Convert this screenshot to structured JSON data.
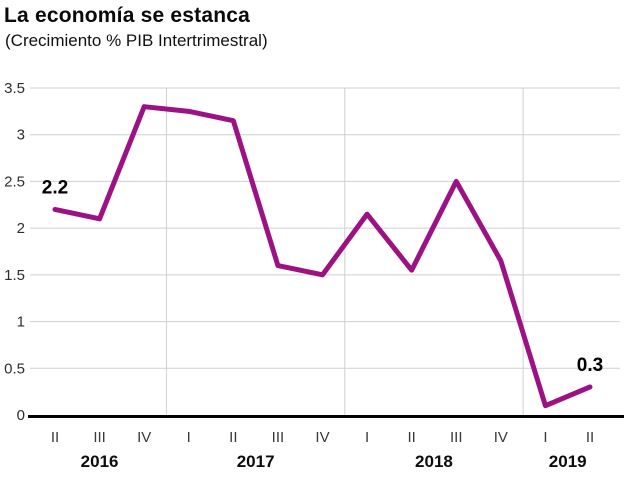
{
  "title": "La economía se estanca",
  "subtitle": "(Crecimiento % PIB Intertrimestral)",
  "chart_data": {
    "type": "line",
    "x": [
      "II",
      "III",
      "IV",
      "I",
      "II",
      "III",
      "IV",
      "I",
      "II",
      "III",
      "IV",
      "I",
      "II"
    ],
    "year_groups": [
      {
        "label": "2016",
        "quarters": 3
      },
      {
        "label": "2017",
        "quarters": 4
      },
      {
        "label": "2018",
        "quarters": 4
      },
      {
        "label": "2019",
        "quarters": 2
      }
    ],
    "values": [
      2.2,
      2.1,
      3.3,
      3.25,
      3.15,
      1.6,
      1.5,
      2.15,
      1.55,
      2.5,
      1.65,
      0.1,
      0.3
    ],
    "ylim": [
      0,
      3.5
    ],
    "yticks": [
      0,
      0.5,
      1,
      1.5,
      2,
      2.5,
      3,
      3.5
    ],
    "annotations": [
      {
        "index": 0,
        "label": "2.2"
      },
      {
        "index": 12,
        "label": "0.3"
      }
    ],
    "line_color": "#9c1284",
    "grid_color": "#cfcfcf",
    "axis_color": "#000000",
    "grid": true,
    "legend": "none"
  }
}
